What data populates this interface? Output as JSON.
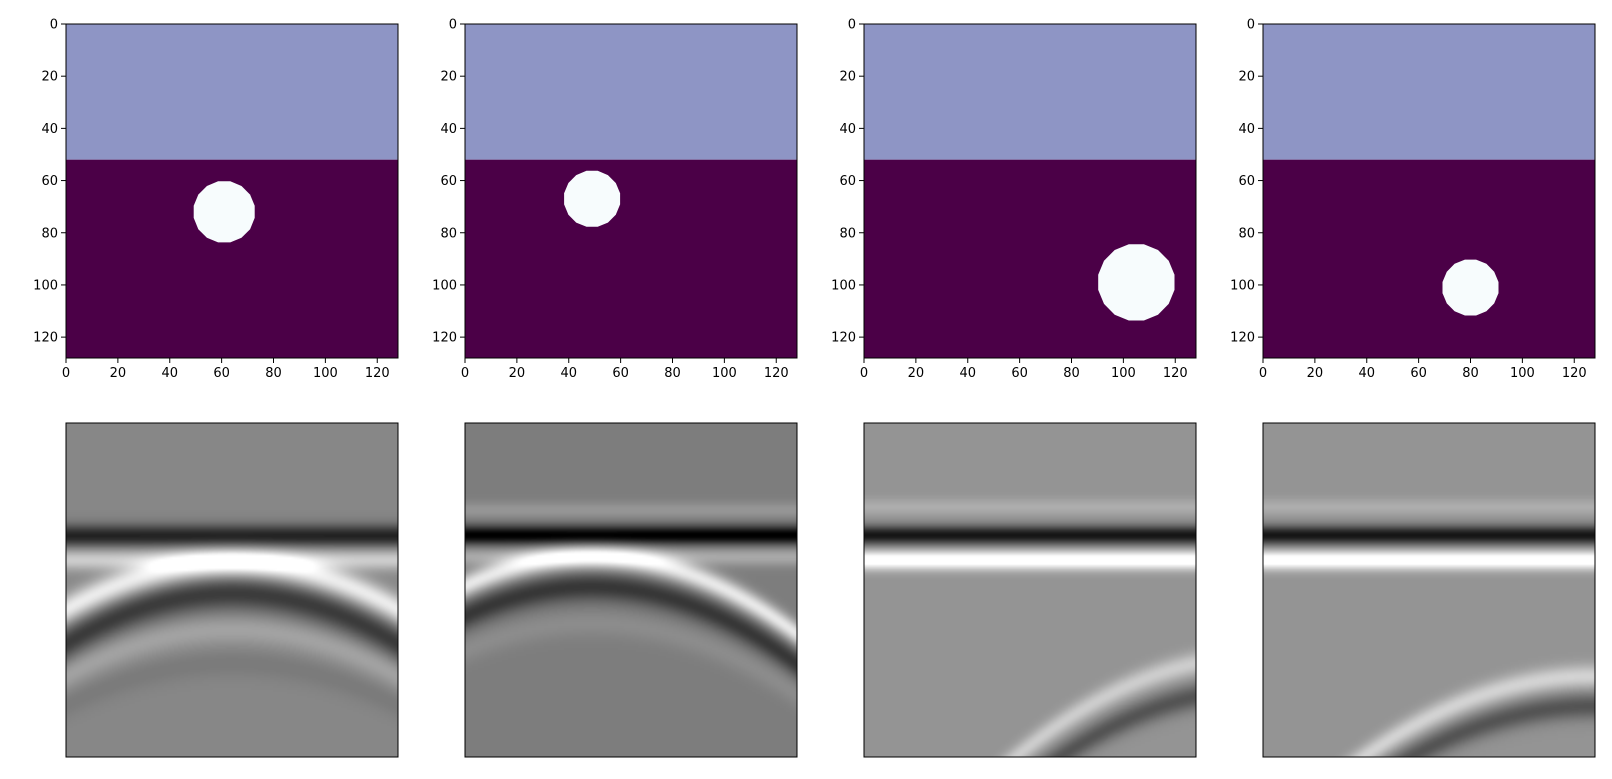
{
  "colors": {
    "background_layer": "#8e95c5",
    "lower_layer": "#4b0047",
    "inclusion": "#f7fcfd"
  },
  "chart_data": [
    {
      "type": "heatmap",
      "row": "model",
      "xlim": [
        0,
        128
      ],
      "ylim": [
        128,
        0
      ],
      "xticks": [
        "0",
        "20",
        "40",
        "60",
        "80",
        "100",
        "120"
      ],
      "yticks": [
        "0",
        "20",
        "40",
        "60",
        "80",
        "100",
        "120"
      ],
      "interface_depth": 52,
      "inclusion": {
        "cx": 61,
        "cy": 72,
        "r": 12
      }
    },
    {
      "type": "heatmap",
      "row": "model",
      "xlim": [
        0,
        128
      ],
      "ylim": [
        128,
        0
      ],
      "xticks": [
        "0",
        "20",
        "40",
        "60",
        "80",
        "100",
        "120"
      ],
      "yticks": [
        "0",
        "20",
        "40",
        "60",
        "80",
        "100",
        "120"
      ],
      "interface_depth": 52,
      "inclusion": {
        "cx": 49,
        "cy": 67,
        "r": 11
      }
    },
    {
      "type": "heatmap",
      "row": "model",
      "xlim": [
        0,
        128
      ],
      "ylim": [
        128,
        0
      ],
      "xticks": [
        "0",
        "20",
        "40",
        "60",
        "80",
        "100",
        "120"
      ],
      "yticks": [
        "0",
        "20",
        "40",
        "60",
        "80",
        "100",
        "120"
      ],
      "interface_depth": 52,
      "inclusion": {
        "cx": 105,
        "cy": 99,
        "r": 15
      }
    },
    {
      "type": "heatmap",
      "row": "model",
      "xlim": [
        0,
        128
      ],
      "ylim": [
        128,
        0
      ],
      "xticks": [
        "0",
        "20",
        "40",
        "60",
        "80",
        "100",
        "120"
      ],
      "yticks": [
        "0",
        "20",
        "40",
        "60",
        "80",
        "100",
        "120"
      ],
      "interface_depth": 52,
      "inclusion": {
        "cx": 80,
        "cy": 101,
        "r": 11
      }
    },
    {
      "type": "heatmap",
      "row": "seismic",
      "background_gray": 0.53,
      "events": [
        {
          "kind": "flat",
          "y": 0.33,
          "amp": 0.22,
          "sigma": 0.018
        },
        {
          "kind": "flat",
          "y": 0.335,
          "amp": -1.0,
          "sigma": 0.022
        },
        {
          "kind": "flat",
          "y": 0.41,
          "amp": 0.55,
          "sigma": 0.022
        },
        {
          "kind": "arc",
          "apex_x": 0.5,
          "apex_y": 0.42,
          "k": 0.55,
          "amp": 0.8,
          "sigma": 0.03
        },
        {
          "kind": "arc",
          "apex_x": 0.5,
          "apex_y": 0.51,
          "k": 0.6,
          "amp": -0.6,
          "sigma": 0.035
        },
        {
          "kind": "arc",
          "apex_x": 0.5,
          "apex_y": 0.62,
          "k": 0.55,
          "amp": 0.22,
          "sigma": 0.03
        },
        {
          "kind": "arc",
          "apex_x": 0.5,
          "apex_y": 0.72,
          "k": 0.5,
          "amp": -0.1,
          "sigma": 0.03
        }
      ]
    },
    {
      "type": "heatmap",
      "row": "seismic",
      "background_gray": 0.49,
      "events": [
        {
          "kind": "flat",
          "y": 0.26,
          "amp": 0.2,
          "sigma": 0.018
        },
        {
          "kind": "flat",
          "y": 0.335,
          "amp": -1.0,
          "sigma": 0.02
        },
        {
          "kind": "flat",
          "y": 0.4,
          "amp": 0.35,
          "sigma": 0.02
        },
        {
          "kind": "arc",
          "apex_x": 0.38,
          "apex_y": 0.4,
          "k": 0.6,
          "amp": 0.85,
          "sigma": 0.025
        },
        {
          "kind": "arc",
          "apex_x": 0.38,
          "apex_y": 0.49,
          "k": 0.6,
          "amp": -0.55,
          "sigma": 0.03
        },
        {
          "kind": "arc",
          "apex_x": 0.38,
          "apex_y": 0.6,
          "k": 0.55,
          "amp": 0.12,
          "sigma": 0.03
        }
      ]
    },
    {
      "type": "heatmap",
      "row": "seismic",
      "background_gray": 0.58,
      "events": [
        {
          "kind": "flat",
          "y": 0.25,
          "amp": 0.2,
          "sigma": 0.018
        },
        {
          "kind": "flat",
          "y": 0.335,
          "amp": -1.0,
          "sigma": 0.02
        },
        {
          "kind": "flat",
          "y": 0.41,
          "amp": 1.0,
          "sigma": 0.02
        },
        {
          "kind": "arc",
          "apex_x": 1.2,
          "apex_y": 0.7,
          "k": 0.55,
          "amp": 0.45,
          "sigma": 0.025
        },
        {
          "kind": "arc",
          "apex_x": 1.2,
          "apex_y": 0.8,
          "k": 0.55,
          "amp": -0.5,
          "sigma": 0.028
        }
      ]
    },
    {
      "type": "heatmap",
      "row": "seismic",
      "background_gray": 0.58,
      "events": [
        {
          "kind": "flat",
          "y": 0.25,
          "amp": 0.2,
          "sigma": 0.018
        },
        {
          "kind": "flat",
          "y": 0.335,
          "amp": -1.0,
          "sigma": 0.02
        },
        {
          "kind": "flat",
          "y": 0.41,
          "amp": 1.0,
          "sigma": 0.02
        },
        {
          "kind": "arc",
          "apex_x": 1.0,
          "apex_y": 0.76,
          "k": 0.5,
          "amp": 0.5,
          "sigma": 0.025
        },
        {
          "kind": "arc",
          "apex_x": 1.0,
          "apex_y": 0.85,
          "k": 0.5,
          "amp": -0.5,
          "sigma": 0.028
        }
      ]
    }
  ]
}
